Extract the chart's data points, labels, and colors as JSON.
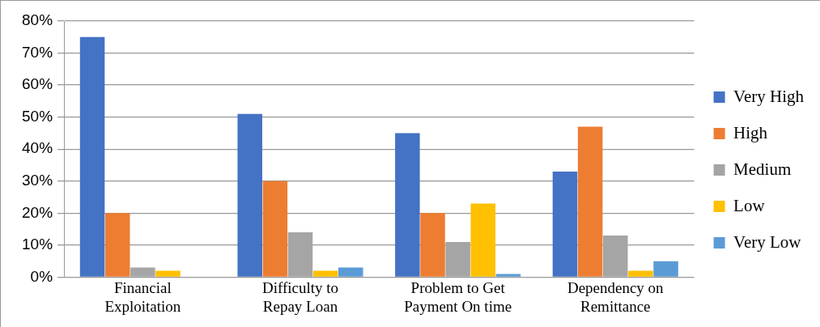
{
  "chart_data": {
    "type": "bar",
    "categories": [
      "Financial Exploitation",
      "Difficulty to Repay Loan",
      "Problem to Get Payment On time",
      "Dependency on Remittance"
    ],
    "series": [
      {
        "name": "Very High",
        "color": "#4472c4",
        "values": [
          75,
          51,
          45,
          33
        ]
      },
      {
        "name": "High",
        "color": "#ed7d31",
        "values": [
          20,
          30,
          20,
          47
        ]
      },
      {
        "name": "Medium",
        "color": "#a5a5a5",
        "values": [
          3,
          14,
          11,
          13
        ]
      },
      {
        "name": "Low",
        "color": "#ffc000",
        "values": [
          2,
          2,
          23,
          2
        ]
      },
      {
        "name": "Very Low",
        "color": "#5b9bd5",
        "values": [
          0,
          3,
          1,
          5
        ]
      }
    ],
    "ylim": [
      0,
      80
    ],
    "yticks": [
      {
        "value": 0,
        "label": "0%"
      },
      {
        "value": 10,
        "label": "10%"
      },
      {
        "value": 20,
        "label": "20%"
      },
      {
        "value": 30,
        "label": "30%"
      },
      {
        "value": 40,
        "label": "40%"
      },
      {
        "value": 50,
        "label": "50%"
      },
      {
        "value": 60,
        "label": "60%"
      },
      {
        "value": 70,
        "label": "70%"
      },
      {
        "value": 80,
        "label": "80%"
      }
    ],
    "grid": "y",
    "legend": "right"
  }
}
